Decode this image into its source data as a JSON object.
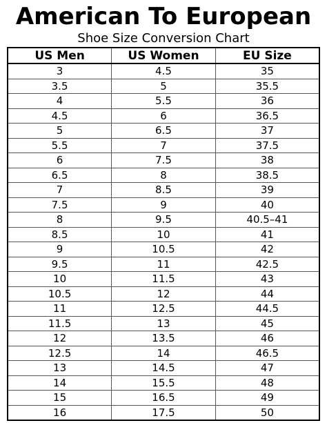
{
  "header": {
    "title": "American To European",
    "subtitle": "Shoe Size Conversion Chart"
  },
  "table": {
    "columns": [
      "US Men",
      "US Women",
      "EU Size"
    ],
    "rows": [
      [
        "3",
        "4.5",
        "35"
      ],
      [
        "3.5",
        "5",
        "35.5"
      ],
      [
        "4",
        "5.5",
        "36"
      ],
      [
        "4.5",
        "6",
        "36.5"
      ],
      [
        "5",
        "6.5",
        "37"
      ],
      [
        "5.5",
        "7",
        "37.5"
      ],
      [
        "6",
        "7.5",
        "38"
      ],
      [
        "6.5",
        "8",
        "38.5"
      ],
      [
        "7",
        "8.5",
        "39"
      ],
      [
        "7.5",
        "9",
        "40"
      ],
      [
        "8",
        "9.5",
        "40.5–41"
      ],
      [
        "8.5",
        "10",
        "41"
      ],
      [
        "9",
        "10.5",
        "42"
      ],
      [
        "9.5",
        "11",
        "42.5"
      ],
      [
        "10",
        "11.5",
        "43"
      ],
      [
        "10.5",
        "12",
        "44"
      ],
      [
        "11",
        "12.5",
        "44.5"
      ],
      [
        "11.5",
        "13",
        "45"
      ],
      [
        "12",
        "13.5",
        "46"
      ],
      [
        "12.5",
        "14",
        "46.5"
      ],
      [
        "13",
        "14.5",
        "47"
      ],
      [
        "14",
        "15.5",
        "48"
      ],
      [
        "15",
        "16.5",
        "49"
      ],
      [
        "16",
        "17.5",
        "50"
      ]
    ]
  }
}
